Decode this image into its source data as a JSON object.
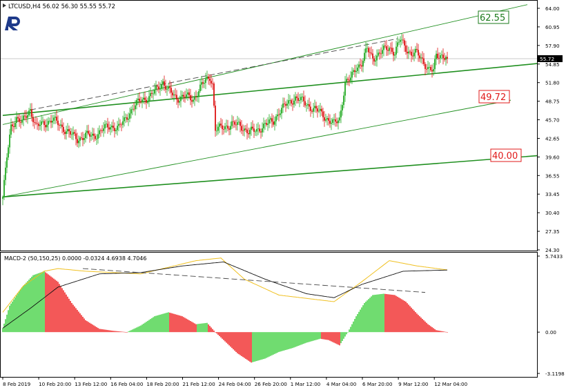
{
  "header": {
    "symbol_info": "LTCUSD,H4  56.02 56.30 55.55 55.72"
  },
  "indicator": {
    "label": "MACD-2 (50,150,25) 0.0000 -0.0324 4.6938 4.7046"
  },
  "colors": {
    "bull_candle": "#22aa22",
    "bear_candle": "#dd1111",
    "trend_line": "#1f8f1f",
    "hist_up": "#33cc33",
    "hist_down": "#ee1111",
    "signal_line": "#f0c020",
    "macd_line": "#111111",
    "label_green": "#1a7a1a",
    "label_red": "#e01818"
  },
  "chart_data": [
    {
      "type": "candlestick",
      "title": "LTCUSD,H4",
      "ylim": [
        24.3,
        64.0
      ],
      "y_ticks": [
        "64.00",
        "60.95",
        "57.90",
        "54.85",
        "51.80",
        "48.75",
        "45.70",
        "42.65",
        "39.60",
        "36.55",
        "33.45",
        "30.40",
        "27.35",
        "24.30"
      ],
      "current_price": "55.72",
      "x_ticks": [
        "8 Feb 2019",
        "10 Feb 20:00",
        "13 Feb 12:00",
        "16 Feb 04:00",
        "18 Feb 20:00",
        "21 Feb 12:00",
        "24 Feb 04:00",
        "26 Feb 20:00",
        "1 Mar 12:00",
        "4 Mar 04:00",
        "6 Mar 20:00",
        "9 Mar 12:00",
        "12 Mar 04:00"
      ],
      "levels": [
        {
          "label": "62.55",
          "kind": "target"
        },
        {
          "label": "49.72",
          "kind": "level"
        },
        {
          "label": "40.00",
          "kind": "level"
        }
      ],
      "close_path": [
        [
          0,
          33.0
        ],
        [
          3,
          39.5
        ],
        [
          6,
          44.5
        ],
        [
          10,
          46.0
        ],
        [
          14,
          45.2
        ],
        [
          20,
          47.4
        ],
        [
          24,
          44.6
        ],
        [
          30,
          45.0
        ],
        [
          36,
          45.8
        ],
        [
          42,
          44.6
        ],
        [
          48,
          43.6
        ],
        [
          54,
          42.4
        ],
        [
          60,
          43.2
        ],
        [
          66,
          42.9
        ],
        [
          72,
          44.1
        ],
        [
          78,
          44.6
        ],
        [
          84,
          44.4
        ],
        [
          88,
          45.5
        ],
        [
          94,
          47.6
        ],
        [
          100,
          48.9
        ],
        [
          106,
          49.4
        ],
        [
          112,
          50.8
        ],
        [
          116,
          51.9
        ],
        [
          120,
          50.5
        ],
        [
          126,
          49.2
        ],
        [
          132,
          49.6
        ],
        [
          138,
          49.0
        ],
        [
          144,
          51.3
        ],
        [
          150,
          52.8
        ],
        [
          152,
          51.6
        ],
        [
          154,
          44.1
        ],
        [
          160,
          44.4
        ],
        [
          166,
          45.0
        ],
        [
          172,
          44.7
        ],
        [
          178,
          43.7
        ],
        [
          184,
          43.9
        ],
        [
          190,
          44.9
        ],
        [
          196,
          45.4
        ],
        [
          200,
          47.0
        ],
        [
          206,
          48.3
        ],
        [
          212,
          49.3
        ],
        [
          218,
          48.6
        ],
        [
          224,
          47.6
        ],
        [
          230,
          46.9
        ],
        [
          236,
          45.6
        ],
        [
          240,
          45.0
        ],
        [
          244,
          45.8
        ],
        [
          248,
          51.8
        ],
        [
          252,
          52.4
        ],
        [
          256,
          54.3
        ],
        [
          260,
          55.0
        ],
        [
          264,
          57.3
        ],
        [
          268,
          55.8
        ],
        [
          272,
          56.4
        ],
        [
          276,
          57.1
        ],
        [
          280,
          57.6
        ],
        [
          284,
          56.7
        ],
        [
          288,
          58.9
        ],
        [
          292,
          57.5
        ],
        [
          296,
          56.4
        ],
        [
          300,
          56.6
        ],
        [
          304,
          55.6
        ],
        [
          308,
          54.0
        ],
        [
          312,
          53.6
        ],
        [
          314,
          56.4
        ],
        [
          318,
          56.3
        ],
        [
          322,
          55.72
        ]
      ]
    },
    {
      "type": "macd",
      "title": "MACD-2 (50,150,25)",
      "params": [
        50,
        150,
        25
      ],
      "values_shown": [
        0.0,
        -0.0324,
        4.6938,
        4.7046
      ],
      "ylim": [
        -3.1198,
        5.7433
      ],
      "y_ticks": [
        "5.7433",
        "0.00",
        "-3.1198"
      ]
    }
  ]
}
